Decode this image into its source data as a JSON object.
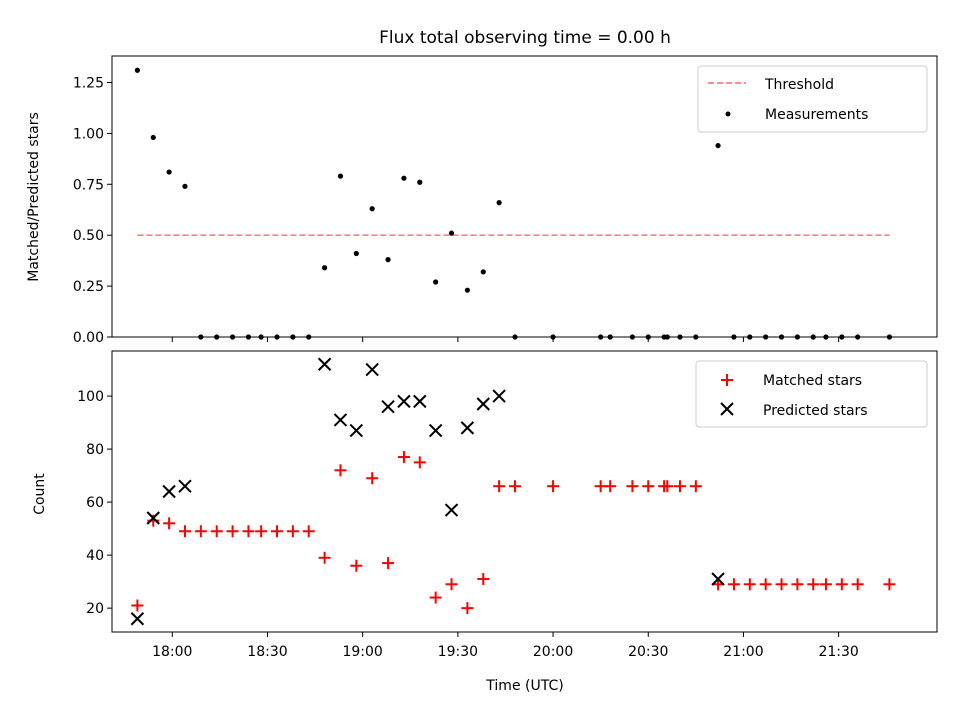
{
  "chart_data": [
    {
      "type": "scatter",
      "title": "Flux total observing time = 0.00 h",
      "ylabel": "Matched/Predicted stars",
      "xlabel": "",
      "xlim": [
        "17:41",
        "22:01"
      ],
      "ylim": [
        0,
        1.38
      ],
      "yticks": [
        "0.00",
        "0.25",
        "0.50",
        "0.75",
        "1.00",
        "1.25"
      ],
      "legend_position": "top-right",
      "series": [
        {
          "name": "Threshold",
          "kind": "dashed-line",
          "color": "#ff7f7f",
          "x": [
            "17:49",
            "21:46"
          ],
          "y": [
            0.5,
            0.5
          ]
        },
        {
          "name": "Measurements",
          "kind": "points",
          "color": "#000000",
          "x": [
            "17:49",
            "17:54",
            "17:59",
            "18:04",
            "18:09",
            "18:14",
            "18:19",
            "18:24",
            "18:28",
            "18:33",
            "18:38",
            "18:43",
            "18:48",
            "18:53",
            "18:58",
            "19:03",
            "19:08",
            "19:13",
            "19:18",
            "19:23",
            "19:28",
            "19:33",
            "19:38",
            "19:43",
            "19:48",
            "20:00",
            "20:15",
            "20:18",
            "20:25",
            "20:30",
            "20:35",
            "20:36",
            "20:40",
            "20:45",
            "20:52",
            "20:57",
            "21:02",
            "21:07",
            "21:12",
            "21:17",
            "21:22",
            "21:26",
            "21:31",
            "21:36",
            "21:46"
          ],
          "y": [
            1.31,
            0.98,
            0.81,
            0.74,
            0,
            0,
            0,
            0,
            0,
            0,
            0,
            0,
            0.34,
            0.79,
            0.41,
            0.63,
            0.38,
            0.78,
            0.76,
            0.27,
            0.51,
            0.23,
            0.32,
            0.66,
            0,
            0,
            0,
            0,
            0,
            0,
            0,
            0,
            0,
            0,
            0.94,
            0,
            0,
            0,
            0,
            0,
            0,
            0,
            0,
            0,
            0
          ]
        }
      ]
    },
    {
      "type": "scatter",
      "title": "",
      "xlabel": "Time (UTC)",
      "ylabel": "Count",
      "xlim": [
        "17:41",
        "22:01"
      ],
      "ylim": [
        11,
        117
      ],
      "xticks": [
        "18:00",
        "18:30",
        "19:00",
        "19:30",
        "20:00",
        "20:30",
        "21:00",
        "21:30"
      ],
      "yticks": [
        "20",
        "40",
        "60",
        "80",
        "100"
      ],
      "legend_position": "top-right",
      "series": [
        {
          "name": "Matched stars",
          "marker": "+",
          "color": "#ff0000",
          "x": [
            "17:49",
            "17:54",
            "17:59",
            "18:04",
            "18:09",
            "18:14",
            "18:19",
            "18:24",
            "18:28",
            "18:33",
            "18:38",
            "18:43",
            "18:48",
            "18:53",
            "18:58",
            "19:03",
            "19:08",
            "19:13",
            "19:18",
            "19:23",
            "19:28",
            "19:33",
            "19:38",
            "19:43",
            "19:48",
            "20:00",
            "20:15",
            "20:18",
            "20:25",
            "20:30",
            "20:35",
            "20:36",
            "20:40",
            "20:45",
            "20:52",
            "20:57",
            "21:02",
            "21:07",
            "21:12",
            "21:17",
            "21:22",
            "21:26",
            "21:31",
            "21:36",
            "21:46"
          ],
          "y": [
            21,
            53,
            52,
            49,
            49,
            49,
            49,
            49,
            49,
            49,
            49,
            49,
            39,
            72,
            36,
            69,
            37,
            77,
            75,
            24,
            29,
            20,
            31,
            66,
            66,
            66,
            66,
            66,
            66,
            66,
            66,
            66,
            66,
            66,
            29,
            29,
            29,
            29,
            29,
            29,
            29,
            29,
            29,
            29,
            29
          ]
        },
        {
          "name": "Predicted stars",
          "marker": "x",
          "color": "#000000",
          "x": [
            "17:49",
            "17:54",
            "17:59",
            "18:04",
            "18:48",
            "18:53",
            "18:58",
            "19:03",
            "19:08",
            "19:13",
            "19:18",
            "19:23",
            "19:28",
            "19:33",
            "19:38",
            "19:43",
            "20:52"
          ],
          "y": [
            16,
            54,
            64,
            66,
            112,
            91,
            87,
            110,
            96,
            98,
            98,
            87,
            57,
            88,
            97,
            100,
            31
          ]
        }
      ]
    }
  ]
}
